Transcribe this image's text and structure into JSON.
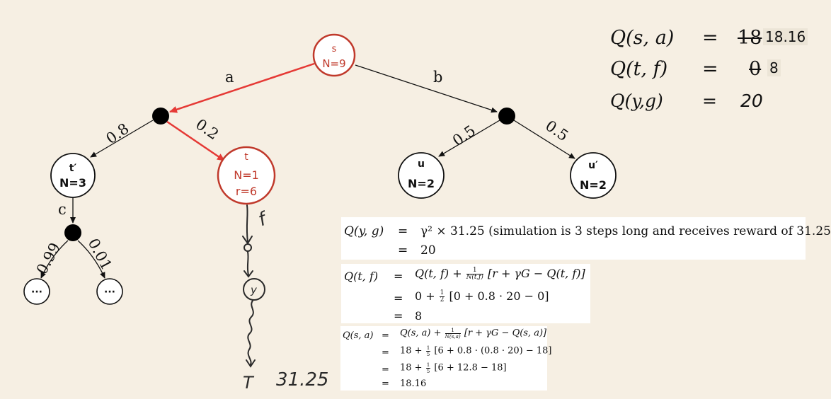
{
  "nodes": {
    "s": {
      "name": "s",
      "count": "N=9"
    },
    "t": {
      "name": "t",
      "count": "N=1",
      "reward": "r=6"
    },
    "t_prime": {
      "name": "t′",
      "count": "N=3"
    },
    "u": {
      "name": "u",
      "count": "N=2"
    },
    "u_prime": {
      "name": "u′",
      "count": "N=2"
    },
    "leaf_left": {
      "label": "···"
    },
    "leaf_right": {
      "label": "···"
    }
  },
  "edges": {
    "action_a": "a",
    "action_b": "b",
    "prob_tprime": "0.8",
    "prob_t": "0.2",
    "prob_u": "0.5",
    "prob_uprime": "0.5",
    "action_c": "c",
    "prob_c_left": "0.99",
    "prob_c_right": "0.01"
  },
  "handwritten": {
    "action_f": "f",
    "node_y": "y",
    "terminal": "T",
    "terminal_reward": "31.25"
  },
  "summary": [
    {
      "lhs": "Q(s, a)",
      "eq": "=",
      "old": "18",
      "new": "18.16"
    },
    {
      "lhs": "Q(t, f)",
      "eq": "=",
      "old": "0",
      "new": "8"
    },
    {
      "lhs": "Q(y,g)",
      "eq": "=",
      "value": "20"
    }
  ],
  "derivation_qyg": {
    "lhs": "Q(y, g)",
    "line1": "γ² × 31.25  (simulation is 3 steps long and receives reward of 31.25",
    "line2": "20"
  },
  "derivation_qtf": {
    "lhs": "Q(t, f)",
    "line1_pre": "Q(t, f) +",
    "frac_num": "1",
    "frac_den": "N(t,f)",
    "line1_post": "[r + γG − Q(t, f)]",
    "line2_pre": "0 +",
    "line2_num": "1",
    "line2_den": "2",
    "line2_post": "[0 + 0.8 · 20 − 0]",
    "line3": "8"
  },
  "derivation_qsa": {
    "lhs": "Q(s, a)",
    "line1_pre": "Q(s, a) +",
    "frac_num": "1",
    "frac_den": "N(s,a)",
    "line1_post": "[r + γG − Q(s, a)]",
    "line2_pre": "18 +",
    "line2_num": "1",
    "line2_den": "5",
    "line2_post": "[6 + 0.8 · (0.8 · 20) − 18]",
    "line3_pre": "18 +",
    "line3_num": "1",
    "line3_den": "5",
    "line3_post": "[6 + 12.8 − 18]",
    "line4": "18.16"
  },
  "colors": {
    "highlight": "#d32f2f",
    "node_red": "#c0392b",
    "ink": "#111111",
    "background": "#f6efe3"
  }
}
